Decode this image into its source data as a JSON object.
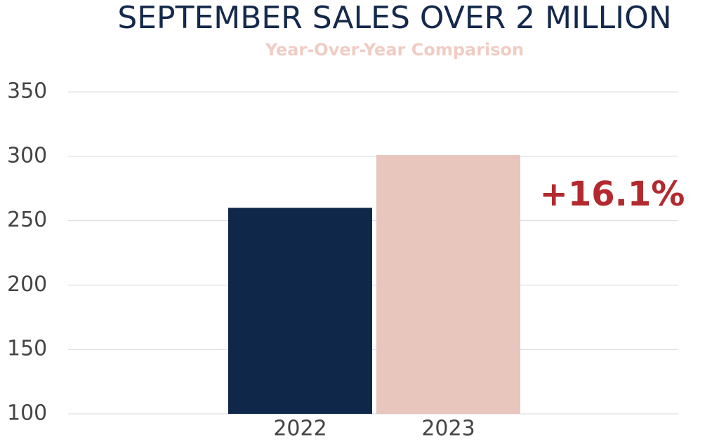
{
  "chart_data": {
    "type": "bar",
    "title": "SEPTEMBER SALES OVER 2 MILLION",
    "subtitle": "Year-Over-Year Comparison",
    "categories": [
      "2022",
      "2023"
    ],
    "values": [
      260,
      301
    ],
    "colors": [
      "#0f2749",
      "#e8c6be"
    ],
    "ylim": [
      100,
      350
    ],
    "yticks": [
      100,
      150,
      200,
      250,
      300,
      350
    ],
    "grid": true,
    "annotation": "+16.1%",
    "annotation_color": "#b22a2e"
  }
}
